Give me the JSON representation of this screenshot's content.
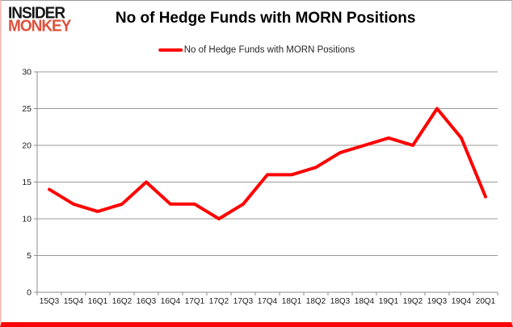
{
  "logo": {
    "line1": "INSIDER",
    "line2": "MONKEY"
  },
  "header": {
    "title": "No of Hedge Funds with MORN Positions"
  },
  "legend": {
    "label": "No of Hedge Funds with MORN Positions"
  },
  "colors": {
    "line": "#ff0000",
    "grid": "#9a9a9a",
    "axis": "#8c8c8c",
    "tick_text": "#1a1a1a",
    "logo_black": "#161616",
    "logo_red": "#df503b",
    "frame_bottom": "#fb0606",
    "frame_side": "#f3c3bd"
  },
  "chart_data": {
    "type": "line",
    "title": "No of Hedge Funds with MORN Positions",
    "categories": [
      "15Q3",
      "15Q4",
      "16Q1",
      "16Q2",
      "16Q3",
      "16Q4",
      "17Q1",
      "17Q2",
      "17Q3",
      "17Q4",
      "18Q1",
      "18Q2",
      "18Q3",
      "18Q4",
      "19Q1",
      "19Q2",
      "19Q3",
      "19Q4",
      "20Q1"
    ],
    "series": [
      {
        "name": "No of Hedge Funds with MORN Positions",
        "color": "#ff0000",
        "values": [
          14,
          12,
          11,
          12,
          15,
          12,
          12,
          10,
          12,
          16,
          16,
          17,
          19,
          20,
          21,
          20,
          25,
          21,
          13
        ]
      }
    ],
    "xlabel": "",
    "ylabel": "",
    "ylim": [
      0,
      30
    ],
    "yticks": [
      0,
      5,
      10,
      15,
      20,
      25,
      30
    ],
    "grid": true,
    "legend_position": "top-center"
  }
}
